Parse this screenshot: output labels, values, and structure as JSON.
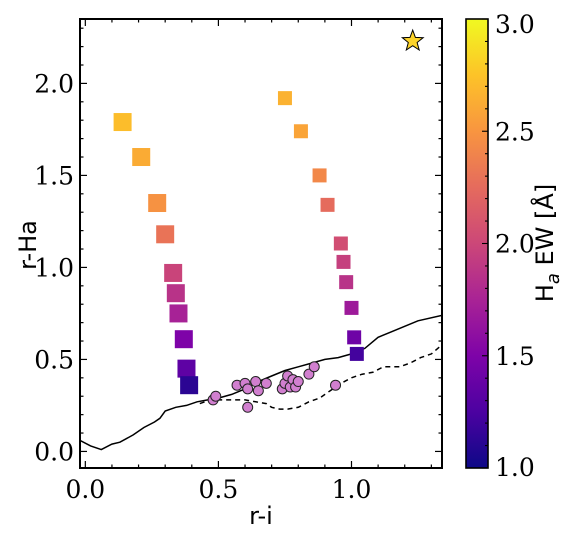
{
  "chart_data": {
    "type": "scatter",
    "xlabel": "r-i",
    "ylabel": "r-Ha",
    "xlim": [
      -0.02,
      1.34
    ],
    "ylim": [
      -0.09,
      2.35
    ],
    "x_ticks": [
      {
        "value": 0.0,
        "label": "0.0"
      },
      {
        "value": 0.5,
        "label": "0.5"
      },
      {
        "value": 1.0,
        "label": "1.0"
      }
    ],
    "y_ticks": [
      {
        "value": 0.0,
        "label": "0.0"
      },
      {
        "value": 0.5,
        "label": "0.5"
      },
      {
        "value": 1.0,
        "label": "1.0"
      },
      {
        "value": 1.5,
        "label": "1.5"
      },
      {
        "value": 2.0,
        "label": "2.0"
      }
    ],
    "colorbar": {
      "label": "H$_a$ EW [Å]",
      "label_main": "H",
      "label_sub": "a",
      "label_rest": " EW [Å]",
      "range": [
        1.0,
        3.0
      ],
      "colormap": "plasma",
      "ticks": [
        {
          "value": 1.0,
          "label": "1.0"
        },
        {
          "value": 1.5,
          "label": "1.5"
        },
        {
          "value": 2.0,
          "label": "2.0"
        },
        {
          "value": 2.5,
          "label": "2.5"
        },
        {
          "value": 3.0,
          "label": "3.0"
        }
      ]
    },
    "squares_left": [
      {
        "x": 0.14,
        "y": 1.79,
        "ew": 2.72
      },
      {
        "x": 0.21,
        "y": 1.6,
        "ew": 2.62
      },
      {
        "x": 0.27,
        "y": 1.35,
        "ew": 2.48
      },
      {
        "x": 0.3,
        "y": 1.18,
        "ew": 2.3
      },
      {
        "x": 0.33,
        "y": 0.97,
        "ew": 1.98
      },
      {
        "x": 0.34,
        "y": 0.86,
        "ew": 1.86
      },
      {
        "x": 0.35,
        "y": 0.75,
        "ew": 1.74
      },
      {
        "x": 0.37,
        "y": 0.61,
        "ew": 1.5
      },
      {
        "x": 0.38,
        "y": 0.45,
        "ew": 1.34
      },
      {
        "x": 0.39,
        "y": 0.36,
        "ew": 1.12
      }
    ],
    "squares_right": [
      {
        "x": 0.75,
        "y": 1.92,
        "ew": 2.66
      },
      {
        "x": 0.81,
        "y": 1.74,
        "ew": 2.58
      },
      {
        "x": 0.88,
        "y": 1.5,
        "ew": 2.42
      },
      {
        "x": 0.91,
        "y": 1.34,
        "ew": 2.25
      },
      {
        "x": 0.96,
        "y": 1.13,
        "ew": 2.05
      },
      {
        "x": 0.97,
        "y": 1.03,
        "ew": 1.95
      },
      {
        "x": 0.98,
        "y": 0.92,
        "ew": 1.86
      },
      {
        "x": 1.0,
        "y": 0.78,
        "ew": 1.68
      },
      {
        "x": 1.01,
        "y": 0.62,
        "ew": 1.42
      },
      {
        "x": 1.02,
        "y": 0.53,
        "ew": 1.22
      }
    ],
    "circles": [
      {
        "x": 0.48,
        "y": 0.28
      },
      {
        "x": 0.49,
        "y": 0.3
      },
      {
        "x": 0.57,
        "y": 0.36
      },
      {
        "x": 0.6,
        "y": 0.37
      },
      {
        "x": 0.61,
        "y": 0.34
      },
      {
        "x": 0.64,
        "y": 0.38
      },
      {
        "x": 0.65,
        "y": 0.33
      },
      {
        "x": 0.68,
        "y": 0.37
      },
      {
        "x": 0.61,
        "y": 0.24
      },
      {
        "x": 0.74,
        "y": 0.34
      },
      {
        "x": 0.75,
        "y": 0.37
      },
      {
        "x": 0.76,
        "y": 0.41
      },
      {
        "x": 0.77,
        "y": 0.35
      },
      {
        "x": 0.78,
        "y": 0.39
      },
      {
        "x": 0.79,
        "y": 0.35
      },
      {
        "x": 0.8,
        "y": 0.38
      },
      {
        "x": 0.84,
        "y": 0.42
      },
      {
        "x": 0.86,
        "y": 0.46
      },
      {
        "x": 0.94,
        "y": 0.36
      }
    ],
    "star": {
      "x": 1.23,
      "y": 2.23
    },
    "solid_line": [
      [
        -0.02,
        0.06
      ],
      [
        0.02,
        0.03
      ],
      [
        0.06,
        0.01
      ],
      [
        0.1,
        0.04
      ],
      [
        0.13,
        0.05
      ],
      [
        0.18,
        0.09
      ],
      [
        0.22,
        0.13
      ],
      [
        0.26,
        0.16
      ],
      [
        0.28,
        0.18
      ],
      [
        0.3,
        0.22
      ],
      [
        0.34,
        0.24
      ],
      [
        0.38,
        0.25
      ],
      [
        0.42,
        0.27
      ],
      [
        0.46,
        0.28
      ],
      [
        0.5,
        0.29
      ],
      [
        0.55,
        0.31
      ],
      [
        0.6,
        0.34
      ],
      [
        0.65,
        0.38
      ],
      [
        0.7,
        0.41
      ],
      [
        0.75,
        0.44
      ],
      [
        0.8,
        0.46
      ],
      [
        0.85,
        0.48
      ],
      [
        0.9,
        0.5
      ],
      [
        0.95,
        0.51
      ],
      [
        1.0,
        0.53
      ],
      [
        1.05,
        0.56
      ],
      [
        1.1,
        0.62
      ],
      [
        1.15,
        0.65
      ],
      [
        1.2,
        0.68
      ],
      [
        1.25,
        0.71
      ],
      [
        1.34,
        0.74
      ]
    ],
    "dashed_line": [
      [
        0.43,
        0.26
      ],
      [
        0.47,
        0.28
      ],
      [
        0.52,
        0.28
      ],
      [
        0.56,
        0.28
      ],
      [
        0.6,
        0.28
      ],
      [
        0.64,
        0.27
      ],
      [
        0.68,
        0.26
      ],
      [
        0.7,
        0.24
      ],
      [
        0.73,
        0.23
      ],
      [
        0.76,
        0.23
      ],
      [
        0.8,
        0.24
      ],
      [
        0.84,
        0.27
      ],
      [
        0.88,
        0.29
      ],
      [
        0.92,
        0.33
      ],
      [
        0.96,
        0.37
      ],
      [
        1.0,
        0.4
      ],
      [
        1.04,
        0.42
      ],
      [
        1.08,
        0.43
      ],
      [
        1.12,
        0.46
      ],
      [
        1.18,
        0.46
      ],
      [
        1.22,
        0.48
      ],
      [
        1.26,
        0.51
      ],
      [
        1.3,
        0.53
      ],
      [
        1.34,
        0.58
      ]
    ]
  }
}
